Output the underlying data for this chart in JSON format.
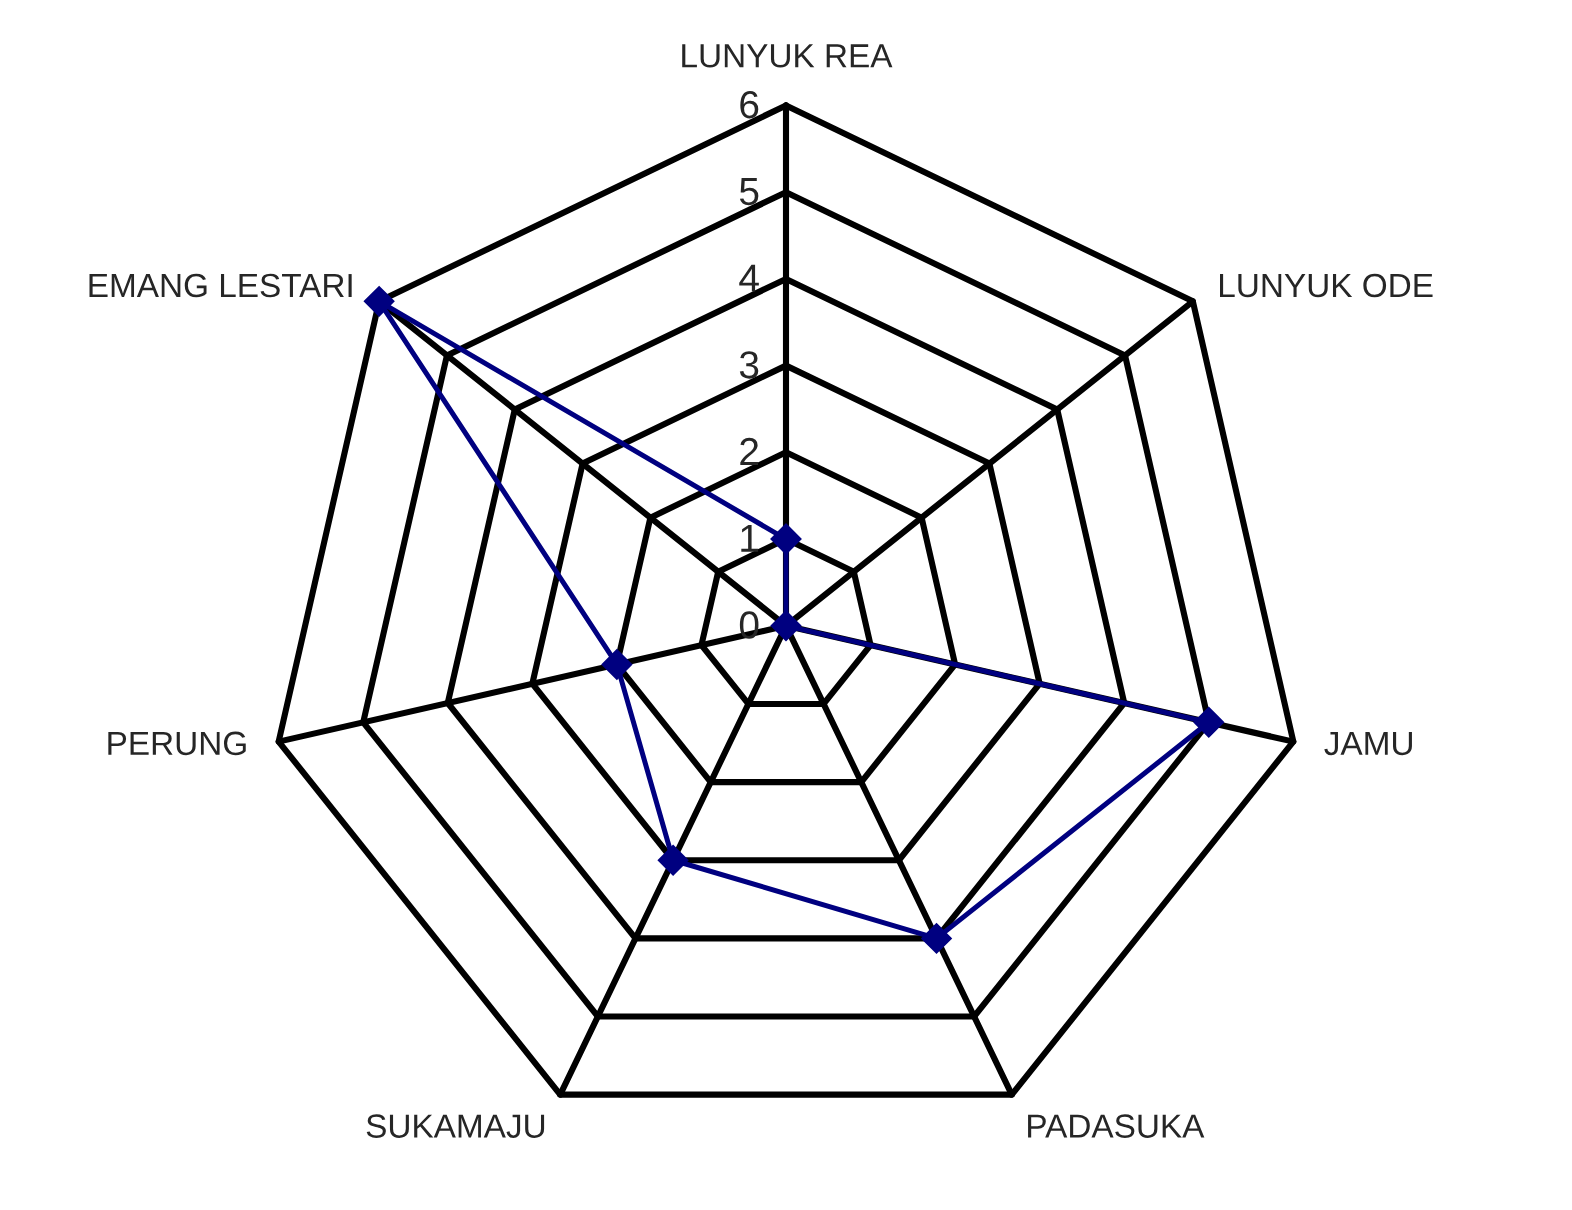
{
  "chart_data": {
    "type": "radar",
    "categories": [
      "LUNYUK REA",
      "LUNYUK ODE",
      "JAMU",
      "PADASUKA",
      "SUKAMAJU",
      "PERUNG",
      "EMANG LESTARI"
    ],
    "series": [
      {
        "color": "#000080",
        "values": [
          1,
          0,
          5,
          4,
          3,
          2,
          6
        ]
      }
    ],
    "ylim": [
      0,
      6
    ],
    "yticks": [
      0,
      1,
      2,
      3,
      4,
      5,
      6
    ],
    "grid": true,
    "marker": "diamond",
    "line_style": "solid"
  }
}
